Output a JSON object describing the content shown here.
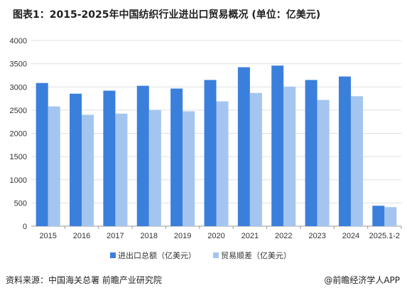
{
  "title": "图表1：2015-2025年中国纺织行业进出口贸易概况 (单位：亿美元)",
  "footer": {
    "source": "资料来源：中国海关总署 前瞻产业研究院",
    "brand": "@前瞻经济学人APP"
  },
  "colors": {
    "series1": "#3a7fdc",
    "series2": "#a4c5ef",
    "grid": "#e0e0e0",
    "axis": "#999999"
  },
  "chart_data": {
    "type": "bar",
    "categories": [
      "2015",
      "2016",
      "2017",
      "2018",
      "2019",
      "2020",
      "2021",
      "2022",
      "2023",
      "2024",
      "2025.1-2"
    ],
    "series": [
      {
        "name": "进出口总额（亿美元）",
        "values": [
          3085,
          2855,
          2920,
          3025,
          2965,
          3150,
          3425,
          3460,
          3150,
          3225,
          440
        ]
      },
      {
        "name": "贸易顺差（亿美元）",
        "values": [
          2580,
          2400,
          2425,
          2505,
          2475,
          2690,
          2870,
          3005,
          2720,
          2800,
          410
        ]
      }
    ],
    "yticks": [
      0,
      500,
      1000,
      1500,
      2000,
      2500,
      3000,
      3500,
      4000
    ],
    "ylim": [
      0,
      4000
    ],
    "grid": true,
    "legend": "bottom-center"
  }
}
